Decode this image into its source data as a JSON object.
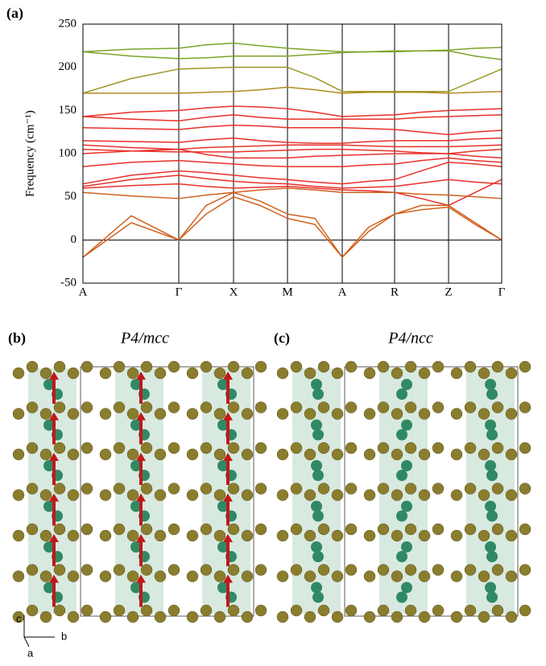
{
  "panel_a_label": "(a)",
  "chart_data": {
    "type": "line",
    "ylabel": "Frequency (cm⁻¹)",
    "x": [
      0,
      60,
      119,
      153,
      187,
      220,
      254,
      288,
      322,
      355,
      387,
      420,
      454,
      487,
      520
    ],
    "xlim": [
      0,
      520
    ],
    "xticks": [
      {
        "value": 0,
        "label": "A"
      },
      {
        "value": 119,
        "label": "Γ"
      },
      {
        "value": 187,
        "label": "X"
      },
      {
        "value": 254,
        "label": "M"
      },
      {
        "value": 322,
        "label": "A"
      },
      {
        "value": 387,
        "label": "R"
      },
      {
        "value": 454,
        "label": "Z"
      },
      {
        "value": 520,
        "label": "Γ"
      }
    ],
    "ylim": [
      -50,
      250
    ],
    "yticks": [
      -50,
      0,
      50,
      100,
      150,
      200,
      250
    ],
    "grid": true,
    "zero_line": true,
    "series": [
      {
        "color": "#7ba428",
        "values": [
          218,
          221,
          222,
          226,
          228,
          225,
          222,
          220,
          218,
          218,
          219,
          219,
          220,
          222,
          223
        ]
      },
      {
        "color": "#7ba428",
        "values": [
          218,
          213,
          210,
          211,
          213,
          213,
          213,
          215,
          217,
          218,
          218,
          219,
          219,
          213,
          209
        ]
      },
      {
        "color": "#9c9a22",
        "values": [
          170,
          187,
          198,
          199,
          200,
          200,
          200,
          188,
          172,
          172,
          172,
          172,
          172,
          185,
          198
        ]
      },
      {
        "color": "#b08a20",
        "values": [
          170,
          170,
          170,
          171,
          172,
          174,
          177,
          174,
          170,
          171,
          171,
          171,
          170,
          171,
          172
        ]
      },
      {
        "color": "#e8312a",
        "values": [
          143,
          148,
          150,
          153,
          155,
          154,
          152,
          148,
          143,
          144,
          145,
          148,
          150,
          151,
          152
        ]
      },
      {
        "color": "#e8312a",
        "values": [
          143,
          140,
          138,
          142,
          145,
          142,
          140,
          140,
          140,
          140,
          140,
          142,
          143,
          144,
          145
        ]
      },
      {
        "color": "#e8312a",
        "values": [
          130,
          129,
          128,
          131,
          133,
          132,
          130,
          130,
          130,
          129,
          128,
          125,
          122,
          125,
          127
        ]
      },
      {
        "color": "#e8312a",
        "values": [
          115,
          114,
          113,
          116,
          118,
          115,
          113,
          112,
          112,
          114,
          115,
          115,
          115,
          117,
          118
        ]
      },
      {
        "color": "#e8312a",
        "values": [
          110,
          107,
          105,
          107,
          108,
          109,
          110,
          110,
          110,
          109,
          108,
          108,
          108,
          109,
          110
        ]
      },
      {
        "color": "#e8312a",
        "values": [
          105,
          103,
          102,
          102,
          102,
          103,
          104,
          105,
          105,
          104,
          103,
          101,
          100,
          103,
          105
        ]
      },
      {
        "color": "#e8312a",
        "values": [
          100,
          103,
          105,
          99,
          95,
          95,
          95,
          97,
          98,
          99,
          100,
          100,
          100,
          97,
          95
        ]
      },
      {
        "color": "#e8312a",
        "values": [
          85,
          90,
          92,
          90,
          88,
          86,
          85,
          85,
          85,
          87,
          88,
          92,
          95,
          92,
          90
        ]
      },
      {
        "color": "#e8312a",
        "values": [
          65,
          75,
          80,
          78,
          75,
          72,
          70,
          67,
          65,
          68,
          70,
          80,
          90,
          88,
          85
        ]
      },
      {
        "color": "#e8312a",
        "values": [
          62,
          70,
          75,
          71,
          68,
          66,
          65,
          62,
          60,
          61,
          62,
          66,
          70,
          67,
          65
        ]
      },
      {
        "color": "#e8312a",
        "values": [
          60,
          63,
          65,
          62,
          60,
          61,
          62,
          60,
          58,
          57,
          55,
          48,
          40,
          55,
          70
        ]
      },
      {
        "color": "#d0601e",
        "values": [
          55,
          51,
          48,
          52,
          55,
          58,
          60,
          58,
          55,
          55,
          55,
          53,
          52,
          50,
          48
        ]
      },
      {
        "color": "#d0601e",
        "values": [
          -20,
          28,
          0,
          40,
          55,
          45,
          30,
          25,
          -20,
          10,
          30,
          40,
          40,
          20,
          0
        ]
      },
      {
        "color": "#d0601e",
        "values": [
          -20,
          20,
          0,
          30,
          50,
          40,
          25,
          18,
          -20,
          15,
          30,
          35,
          38,
          18,
          0
        ]
      }
    ]
  },
  "panel_b": {
    "label": "(b)",
    "title": "P4/mcc"
  },
  "panel_c": {
    "label": "(c)",
    "title": "P4/ncc"
  },
  "axes_legend": {
    "c": "c",
    "b": "b",
    "a": "a"
  }
}
